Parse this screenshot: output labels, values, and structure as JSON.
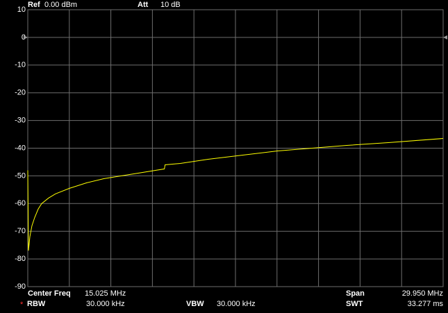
{
  "header": {
    "ref_label": "Ref",
    "ref_value": "0.00 dBm",
    "att_label": "Att",
    "att_value": "10 dB"
  },
  "footer": {
    "center_label": "Center Freq",
    "center_value": "15.025 MHz",
    "span_label": "Span",
    "span_value": "29.950 MHz",
    "rbw_marker": "*",
    "rbw_label": "RBW",
    "rbw_value": "30.000 kHz",
    "vbw_label": "VBW",
    "vbw_value": "30.000 kHz",
    "swt_label": "SWT",
    "swt_value": "33.277 ms"
  },
  "chart_data": {
    "type": "line",
    "x": [
      0.05,
      0.1,
      0.2,
      0.35,
      0.55,
      0.8,
      1.05,
      1.55,
      2.05,
      3.05,
      4.3,
      5.55,
      6.8,
      8.05,
      9.9,
      9.95,
      11.05,
      13.05,
      15.55,
      18.05,
      20.55,
      23.05,
      26.05,
      30.0
    ],
    "series": [
      {
        "color": "#ffff00",
        "values": [
          -48,
          -77,
          -72,
          -68,
          -65,
          -62,
          -60,
          -58,
          -56.5,
          -54.5,
          -52.5,
          -51,
          -50,
          -49,
          -47.5,
          -46,
          -45.5,
          -44,
          -42.5,
          -41,
          -40,
          -39,
          -38,
          -36.5
        ]
      }
    ],
    "xlim": [
      0.05,
      30.0
    ],
    "ylim": [
      -90,
      10
    ],
    "yticks": [
      10,
      0,
      -10,
      -20,
      -30,
      -40,
      -50,
      -60,
      -70,
      -80,
      -90
    ],
    "grid": true,
    "grid_color": "#6e6e6e"
  }
}
